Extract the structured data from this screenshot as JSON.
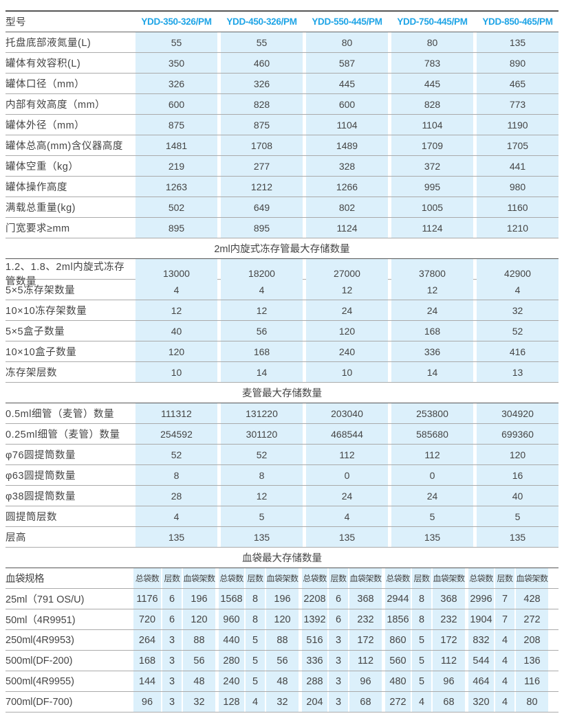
{
  "colors": {
    "header_text": "#1ea4e6",
    "cell_bg": "#dcf0fb"
  },
  "header": {
    "label": "型号",
    "models": [
      "YDD-350-326/PM",
      "YDD-450-326/PM",
      "YDD-550-445/PM",
      "YDD-750-445/PM",
      "YDD-850-465/PM"
    ]
  },
  "basic_rows": [
    {
      "label": "托盘底部液氮量(L)",
      "values": [
        "55",
        "55",
        "80",
        "80",
        "135"
      ]
    },
    {
      "label": "罐体有效容积(L)",
      "values": [
        "350",
        "460",
        "587",
        "783",
        "890"
      ]
    },
    {
      "label": "罐体口径（mm）",
      "values": [
        "326",
        "326",
        "445",
        "445",
        "465"
      ]
    },
    {
      "label": "内部有效高度（mm）",
      "values": [
        "600",
        "828",
        "600",
        "828",
        "773"
      ]
    },
    {
      "label": "罐体外径（mm）",
      "values": [
        "875",
        "875",
        "1104",
        "1104",
        "1190"
      ]
    },
    {
      "label": "罐体总高(mm)含仪器高度",
      "values": [
        "1481",
        "1708",
        "1489",
        "1709",
        "1705"
      ]
    },
    {
      "label": "罐体空重（kg）",
      "values": [
        "219",
        "277",
        "328",
        "372",
        "441"
      ]
    },
    {
      "label": "罐体操作高度",
      "values": [
        "1263",
        "1212",
        "1266",
        "995",
        "980"
      ]
    },
    {
      "label": "满载总重量(kg)",
      "values": [
        "502",
        "649",
        "802",
        "1005",
        "1160"
      ]
    },
    {
      "label": "门宽要求≥mm",
      "values": [
        "895",
        "895",
        "1124",
        "1124",
        "1210"
      ]
    }
  ],
  "section_cryo": {
    "title": "2ml内旋式冻存管最大存储数量",
    "rows": [
      {
        "label": "1.2、1.8、2ml内旋式冻存管数量",
        "values": [
          "13000",
          "18200",
          "27000",
          "37800",
          "42900"
        ]
      },
      {
        "label": "5×5冻存架数量",
        "values": [
          "4",
          "4",
          "12",
          "12",
          "4"
        ]
      },
      {
        "label": "10×10冻存架数量",
        "values": [
          "12",
          "12",
          "24",
          "24",
          "32"
        ]
      },
      {
        "label": "5×5盒子数量",
        "values": [
          "40",
          "56",
          "120",
          "168",
          "52"
        ]
      },
      {
        "label": "10×10盒子数量",
        "values": [
          "120",
          "168",
          "240",
          "336",
          "416"
        ]
      },
      {
        "label": "冻存架层数",
        "values": [
          "10",
          "14",
          "10",
          "14",
          "13"
        ]
      }
    ]
  },
  "section_straw": {
    "title": "麦管最大存储数量",
    "rows": [
      {
        "label": "0.5ml细管（麦管）数量",
        "values": [
          "111312",
          "131220",
          "203040",
          "253800",
          "304920"
        ]
      },
      {
        "label": "0.25ml细管（麦管）数量",
        "values": [
          "254592",
          "301120",
          "468544",
          "585680",
          "699360"
        ]
      },
      {
        "label": "φ76圆提筒数量",
        "values": [
          "52",
          "52",
          "112",
          "112",
          "120"
        ]
      },
      {
        "label": "φ63圆提筒数量",
        "values": [
          "8",
          "8",
          "0",
          "0",
          "16"
        ]
      },
      {
        "label": "φ38圆提筒数量",
        "values": [
          "28",
          "12",
          "24",
          "24",
          "40"
        ]
      },
      {
        "label": "圆提筒层数",
        "values": [
          "4",
          "5",
          "4",
          "5",
          "5"
        ]
      },
      {
        "label": "层高",
        "values": [
          "135",
          "135",
          "135",
          "135",
          "135"
        ]
      }
    ]
  },
  "section_blood": {
    "title": "血袋最大存储数量",
    "header_label": "血袋规格",
    "sub_headers": [
      "总袋数",
      "层数",
      "血袋架数"
    ],
    "rows": [
      {
        "label": "25ml（791 OS/U)",
        "values": [
          "1176",
          "6",
          "196",
          "1568",
          "8",
          "196",
          "2208",
          "6",
          "368",
          "2944",
          "8",
          "368",
          "2996",
          "7",
          "428"
        ]
      },
      {
        "label": "50ml（4R9951)",
        "values": [
          "720",
          "6",
          "120",
          "960",
          "8",
          "120",
          "1392",
          "6",
          "232",
          "1856",
          "8",
          "232",
          "1904",
          "7",
          "272"
        ]
      },
      {
        "label": "250ml(4R9953)",
        "values": [
          "264",
          "3",
          "88",
          "440",
          "5",
          "88",
          "516",
          "3",
          "172",
          "860",
          "5",
          "172",
          "832",
          "4",
          "208"
        ]
      },
      {
        "label": "500ml(DF-200)",
        "values": [
          "168",
          "3",
          "56",
          "280",
          "5",
          "56",
          "336",
          "3",
          "112",
          "560",
          "5",
          "112",
          "544",
          "4",
          "136"
        ]
      },
      {
        "label": "500ml(4R9955)",
        "values": [
          "144",
          "3",
          "48",
          "240",
          "5",
          "48",
          "288",
          "3",
          "96",
          "480",
          "5",
          "96",
          "464",
          "4",
          "116"
        ]
      },
      {
        "label": "700ml(DF-700)",
        "values": [
          "96",
          "3",
          "32",
          "128",
          "4",
          "32",
          "204",
          "3",
          "68",
          "272",
          "4",
          "68",
          "320",
          "4",
          "80"
        ]
      }
    ]
  }
}
